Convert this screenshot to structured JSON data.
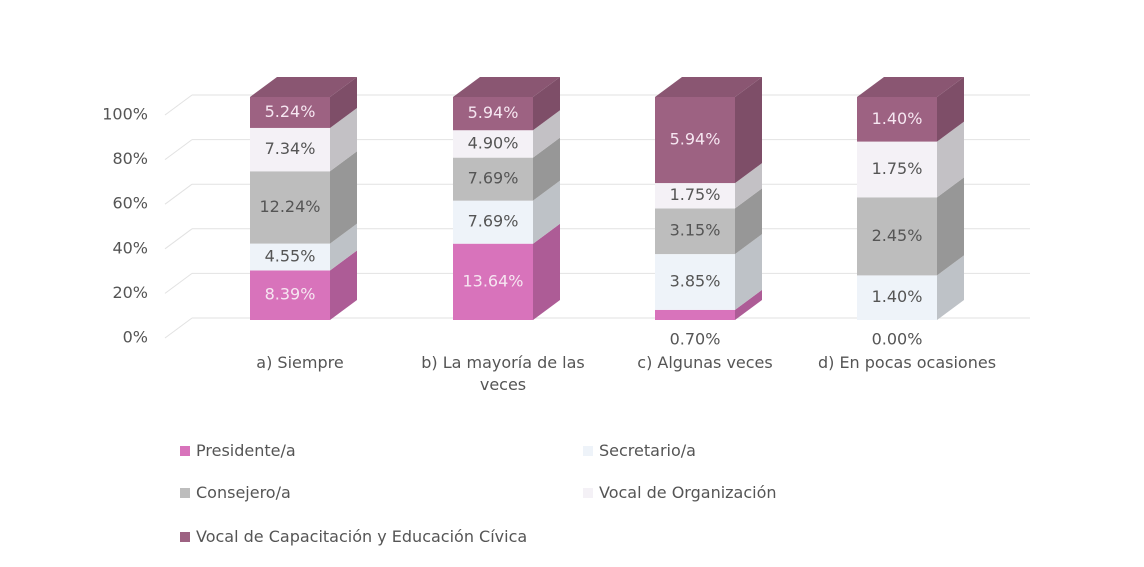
{
  "chart_data": {
    "type": "bar",
    "stacked": "percent",
    "categories": [
      "a) Siempre",
      "b) La mayoría de las veces",
      "c) Algunas veces",
      "d) En pocas ocasiones"
    ],
    "series": [
      {
        "name": "Presidente/a",
        "color": "#d873bb",
        "values": [
          8.39,
          13.64,
          0.7,
          0.0
        ],
        "value_labels": [
          "8.39%",
          "13.64%",
          "0.70%",
          "0.00%"
        ]
      },
      {
        "name": "Secretario/a",
        "color": "#eef3f9",
        "values": [
          4.55,
          7.69,
          3.85,
          1.4
        ],
        "value_labels": [
          "4.55%",
          "7.69%",
          "3.85%",
          "1.40%"
        ]
      },
      {
        "name": "Consejero/a",
        "color": "#bdbdbd",
        "values": [
          12.24,
          7.69,
          3.15,
          2.45
        ],
        "value_labels": [
          "12.24%",
          "7.69%",
          "3.15%",
          "2.45%"
        ]
      },
      {
        "name": "Vocal de Organización",
        "color": "#f4f1f6",
        "values": [
          7.34,
          4.9,
          1.75,
          1.75
        ],
        "value_labels": [
          "7.34%",
          "4.90%",
          "1.75%",
          "1.75%"
        ]
      },
      {
        "name": "Vocal de Capacitación y Educación Cívica",
        "color": "#9d6282",
        "values": [
          5.24,
          5.94,
          5.94,
          1.4
        ],
        "value_labels": [
          "5.24%",
          "5.94%",
          "5.94%",
          "1.40%"
        ]
      }
    ],
    "ylim": [
      0,
      100
    ],
    "yticks": [
      {
        "value": 0,
        "label": "0%"
      },
      {
        "value": 20,
        "label": "20%"
      },
      {
        "value": 40,
        "label": "40%"
      },
      {
        "value": 60,
        "label": "60%"
      },
      {
        "value": 80,
        "label": "80%"
      },
      {
        "value": 100,
        "label": "100%"
      }
    ],
    "grid": true,
    "legend": "bottom"
  }
}
